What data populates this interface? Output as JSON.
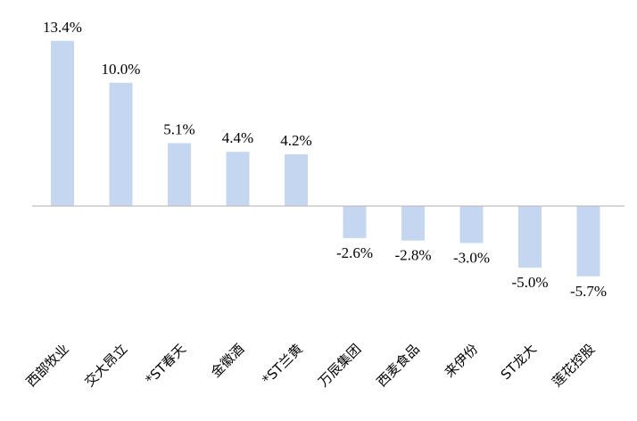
{
  "chart_data": {
    "type": "bar",
    "categories": [
      "西部牧业",
      "交大昂立",
      "*ST春天",
      "金徽酒",
      "*ST兰黄",
      "万辰集团",
      "西麦食品",
      "来伊份",
      "ST龙大",
      "莲花控股"
    ],
    "values": [
      13.4,
      10.0,
      5.1,
      4.4,
      4.2,
      -2.6,
      -2.8,
      -3.0,
      -5.0,
      -5.7
    ],
    "data_labels": [
      "13.4%",
      "10.0%",
      "5.1%",
      "4.4%",
      "4.2%",
      "-2.6%",
      "-2.8%",
      "-3.0%",
      "-5.0%",
      "-5.7%"
    ],
    "title": "",
    "xlabel": "",
    "ylabel": "",
    "ylim": [
      -5.7,
      13.4
    ],
    "grid": false,
    "legend": "none",
    "bar_color": "#c5d7f0",
    "axis_color": "#bfbfbf"
  }
}
